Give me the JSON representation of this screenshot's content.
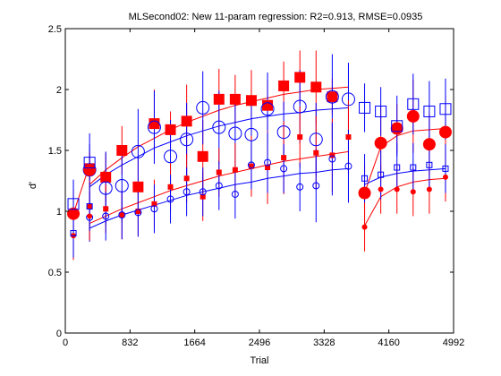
{
  "chart_data": {
    "type": "scatter",
    "title": "MLSecond02: New 11-param regression: R2=0.913, RMSE=0.0935",
    "xlabel": "Trial",
    "ylabel": "d'",
    "xlim": [
      0,
      4992
    ],
    "ylim": [
      0,
      2.5
    ],
    "xticks": [
      0,
      832,
      1664,
      2496,
      3328,
      4160,
      4992
    ],
    "yticks": [
      0,
      0.5,
      1,
      1.5,
      2,
      2.5
    ],
    "xtick_labels": [
      "0",
      "832",
      "1664",
      "2496",
      "3328",
      "4160",
      "4992"
    ],
    "ytick_labels": [
      "0",
      "0.5",
      "1",
      "1.5",
      "2",
      "2.5"
    ],
    "grid": false,
    "legend": "none",
    "colors": {
      "red": "#ff0000",
      "blue": "#0000ff",
      "axis": "#000000"
    },
    "series": [
      {
        "color": "#ff0000",
        "marker": "square",
        "size": "large",
        "x": [
          312,
          520,
          728,
          936,
          1144,
          1352,
          1560,
          1768,
          1976,
          2184,
          2392,
          2600,
          2808,
          3016,
          3224,
          3432
        ],
        "y": [
          1.35,
          1.28,
          1.5,
          1.2,
          1.72,
          1.67,
          1.74,
          1.45,
          1.92,
          1.92,
          1.91,
          1.87,
          2.03,
          2.1,
          2.02,
          1.94
        ],
        "err": [
          0.12,
          0.2,
          0.2,
          0.25,
          0.28,
          0.15,
          0.3,
          0.3,
          0.25,
          0.2,
          0.25,
          0.2,
          0.2,
          0.22,
          0.3,
          0.15
        ]
      },
      {
        "color": "#0000ff",
        "marker": "circle-open",
        "size": "large",
        "x": [
          312,
          520,
          728,
          936,
          1144,
          1352,
          1560,
          1768,
          1976,
          2184,
          2392,
          2600,
          2808,
          3016,
          3224,
          3432,
          3640
        ],
        "y": [
          1.34,
          1.19,
          1.21,
          1.49,
          1.69,
          1.45,
          1.59,
          1.85,
          1.69,
          1.64,
          1.63,
          1.84,
          1.65,
          1.86,
          1.59,
          1.94,
          1.92
        ],
        "err": [
          0.3,
          0.3,
          0.3,
          0.35,
          0.3,
          0.3,
          0.3,
          0.3,
          0.3,
          0.3,
          0.3,
          0.3,
          0.25,
          0.3,
          0.3,
          0.35,
          0.3
        ]
      },
      {
        "color": "#ff0000",
        "marker": "square",
        "size": "small",
        "x": [
          312,
          520,
          728,
          936,
          1144,
          1352,
          1560,
          1768,
          1976,
          2184,
          2392,
          2600,
          2808,
          3016,
          3224,
          3432,
          3640
        ],
        "y": [
          1.04,
          1.02,
          0.97,
          1.0,
          1.06,
          1.2,
          1.27,
          1.12,
          1.32,
          1.34,
          1.37,
          1.36,
          1.44,
          1.61,
          1.48,
          1.46,
          1.61
        ],
        "err": [
          0.2,
          0.2,
          0.2,
          0.2,
          0.2,
          0.2,
          0.2,
          0.2,
          0.2,
          0.22,
          0.25,
          0.3,
          0.3,
          0.25,
          0.3,
          0.3,
          0.3
        ]
      },
      {
        "color": "#0000ff",
        "marker": "circle-open",
        "size": "small",
        "x": [
          312,
          520,
          728,
          936,
          1144,
          1352,
          1560,
          1768,
          1976,
          2184,
          2392,
          2600,
          2808,
          3016,
          3224,
          3432,
          3640
        ],
        "y": [
          0.95,
          0.96,
          0.97,
          0.99,
          1.02,
          1.1,
          1.16,
          1.16,
          1.21,
          1.14,
          1.38,
          1.4,
          1.35,
          1.2,
          1.21,
          1.43,
          1.37
        ],
        "err": [
          0.2,
          0.2,
          0.2,
          0.2,
          0.2,
          0.2,
          0.2,
          0.2,
          0.2,
          0.2,
          0.2,
          0.25,
          0.2,
          0.2,
          0.3,
          0.3,
          0.3
        ]
      },
      {
        "color": "#ff0000",
        "marker": "circle-filled",
        "size": "large",
        "x": [
          104,
          312,
          3848,
          4056,
          4264,
          4472,
          4680,
          4888
        ],
        "y": [
          0.98,
          1.34,
          1.15,
          1.56,
          1.68,
          1.78,
          1.55,
          1.65
        ],
        "err": [
          0.2,
          0.15,
          0.25,
          0.3,
          0.2,
          0.3,
          0.25,
          0.3
        ]
      },
      {
        "color": "#0000ff",
        "marker": "square-open",
        "size": "large",
        "x": [
          104,
          312,
          3848,
          4056,
          4264,
          4472,
          4680,
          4888
        ],
        "y": [
          1.06,
          1.4,
          1.85,
          1.82,
          1.7,
          1.88,
          1.82,
          1.84
        ],
        "err": [
          0.2,
          0.15,
          0.2,
          0.2,
          0.25,
          0.25,
          0.25,
          0.25
        ]
      },
      {
        "color": "#ff0000",
        "marker": "circle-filled",
        "size": "small",
        "x": [
          104,
          312,
          3848,
          4056,
          4264,
          4472,
          4680,
          4888
        ],
        "y": [
          0.8,
          0.96,
          0.87,
          1.18,
          1.18,
          1.16,
          1.18,
          1.28
        ],
        "err": [
          0.2,
          0.2,
          0.2,
          0.2,
          0.2,
          0.2,
          0.2,
          0.2
        ]
      },
      {
        "color": "#0000ff",
        "marker": "square-open",
        "size": "small",
        "x": [
          104,
          312,
          3848,
          4056,
          4264,
          4472,
          4680,
          4888
        ],
        "y": [
          0.82,
          1.04,
          1.27,
          1.3,
          1.36,
          1.36,
          1.38,
          1.35
        ],
        "err": [
          0.2,
          0.2,
          0.2,
          0.2,
          0.2,
          0.2,
          0.2,
          0.2
        ]
      }
    ],
    "curves": [
      {
        "color": "#ff0000",
        "x": [
          104,
          312
        ],
        "y": [
          0.98,
          1.38
        ]
      },
      {
        "color": "#ff0000",
        "x": [
          312,
          520,
          728,
          936,
          1144,
          1352,
          1560,
          1768,
          1976,
          2184,
          2392,
          2600,
          2808,
          3016,
          3224,
          3432,
          3640
        ],
        "y": [
          1.22,
          1.34,
          1.44,
          1.53,
          1.6,
          1.67,
          1.73,
          1.78,
          1.83,
          1.87,
          1.9,
          1.93,
          1.96,
          1.98,
          2.0,
          2.01,
          2.02
        ]
      },
      {
        "color": "#0000ff",
        "x": [
          312,
          520,
          728,
          936,
          1144,
          1352,
          1560,
          1768,
          1976,
          2184,
          2392,
          2600,
          2808,
          3016,
          3224,
          3432,
          3640
        ],
        "y": [
          1.2,
          1.3,
          1.38,
          1.45,
          1.52,
          1.57,
          1.62,
          1.66,
          1.7,
          1.73,
          1.76,
          1.78,
          1.8,
          1.81,
          1.83,
          1.84,
          1.85
        ]
      },
      {
        "color": "#ff0000",
        "x": [
          312,
          520,
          728,
          936,
          1144,
          1352,
          1560,
          1768,
          1976,
          2184,
          2392,
          2600,
          2808,
          3016,
          3224,
          3432,
          3640
        ],
        "y": [
          0.9,
          0.96,
          1.02,
          1.07,
          1.12,
          1.17,
          1.21,
          1.25,
          1.29,
          1.32,
          1.35,
          1.38,
          1.41,
          1.43,
          1.45,
          1.47,
          1.49
        ]
      },
      {
        "color": "#0000ff",
        "x": [
          312,
          520,
          728,
          936,
          1144,
          1352,
          1560,
          1768,
          1976,
          2184,
          2392,
          2600,
          2808,
          3016,
          3224,
          3432,
          3640
        ],
        "y": [
          0.86,
          0.92,
          0.97,
          1.01,
          1.05,
          1.09,
          1.13,
          1.16,
          1.19,
          1.22,
          1.24,
          1.27,
          1.29,
          1.31,
          1.32,
          1.34,
          1.35
        ]
      },
      {
        "color": "#ff0000",
        "x": [
          3848,
          4056,
          4264,
          4472,
          4680,
          4888
        ],
        "y": [
          1.15,
          1.53,
          1.62,
          1.66,
          1.67,
          1.68
        ]
      },
      {
        "color": "#ff0000",
        "x": [
          3848,
          4056,
          4264,
          4472,
          4680,
          4888
        ],
        "y": [
          0.88,
          1.12,
          1.2,
          1.24,
          1.26,
          1.27
        ]
      },
      {
        "color": "#0000ff",
        "x": [
          3848,
          4056,
          4264,
          4472,
          4680,
          4888
        ],
        "y": [
          1.22,
          1.28,
          1.31,
          1.33,
          1.34,
          1.35
        ]
      }
    ]
  }
}
